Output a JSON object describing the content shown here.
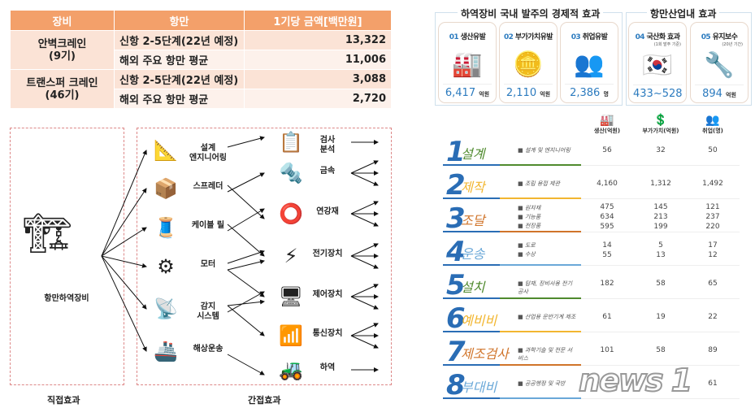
{
  "table": {
    "headers": [
      "장비",
      "항만",
      "1기당 금액[백만원]"
    ],
    "groups": [
      {
        "equipment": "안벽크레인",
        "count": "(9기)",
        "rows": [
          {
            "port": "신항 2-5단계(22년 예정)",
            "amount": "13,322"
          },
          {
            "port": "해외 주요 항만 평균",
            "amount": "11,006"
          }
        ]
      },
      {
        "equipment": "트랜스퍼 크레인",
        "count": "(46기)",
        "rows": [
          {
            "port": "신항 2-5단계(22년 예정)",
            "amount": "3,088"
          },
          {
            "port": "해외 주요 항만 평균",
            "amount": "2,720"
          }
        ]
      }
    ]
  },
  "diagram": {
    "direct_label": "항만하역장비",
    "direct_footer": "직접효과",
    "indirect_footer": "간접효과",
    "level1": [
      {
        "label": "설계\n엔지니어링",
        "icon": "blueprint-icon"
      },
      {
        "label": "스프레더",
        "icon": "container-icon"
      },
      {
        "label": "케이블 릴",
        "icon": "cable-reel-icon"
      },
      {
        "label": "모터",
        "icon": "motor-icon"
      },
      {
        "label": "감지\n시스템",
        "icon": "sensor-icon"
      },
      {
        "label": "해상운송",
        "icon": "ship-icon"
      }
    ],
    "level2": [
      {
        "label": "검사\n분석",
        "icon": "inspection-icon"
      },
      {
        "label": "금속",
        "icon": "steel-beam-icon"
      },
      {
        "label": "연강재",
        "icon": "steel-coil-icon"
      },
      {
        "label": "전기장치",
        "icon": "electric-icon"
      },
      {
        "label": "제어장치",
        "icon": "control-panel-icon"
      },
      {
        "label": "통신장치",
        "icon": "communication-icon"
      },
      {
        "label": "하역",
        "icon": "forklift-icon"
      }
    ]
  },
  "economic": {
    "title": "하역장비 국내 발주의 경제적 효과",
    "cards": [
      {
        "num": "01",
        "title": "생산유발",
        "value": "6,417",
        "unit": "억원",
        "icon": "worker-machine-icon"
      },
      {
        "num": "02",
        "title": "부가가치유발",
        "value": "2,110",
        "unit": "억원",
        "icon": "coins-icon"
      },
      {
        "num": "03",
        "title": "취업유발",
        "value": "2,386",
        "unit": "명",
        "icon": "people-icon"
      }
    ]
  },
  "port": {
    "title": "항만산업내 효과",
    "cards": [
      {
        "num": "04",
        "title": "국산화 효과",
        "sub": "(1회 발주 기준)",
        "value": "433~528",
        "unit": "억원",
        "icon": "korea-flag-icon"
      },
      {
        "num": "05",
        "title": "유지보수",
        "sub": "(20년 기간)",
        "value": "894",
        "unit": "억원",
        "icon": "wrench-icon"
      }
    ]
  },
  "breakdown": {
    "headers": [
      "생산(억원)",
      "부가가치(억원)",
      "취업(명)"
    ],
    "rows": [
      {
        "num": "1",
        "name": "설계",
        "color": "#4f8a2e",
        "items": [
          "설계 및 엔지니어링"
        ],
        "values": [
          [
            "56"
          ],
          [
            "32"
          ],
          [
            "50"
          ]
        ]
      },
      {
        "num": "2",
        "name": "제작",
        "color": "#f2b630",
        "items": [
          "조립 용접 제관"
        ],
        "values": [
          [
            "4,160"
          ],
          [
            "1,312"
          ],
          [
            "1,492"
          ]
        ]
      },
      {
        "num": "3",
        "name": "조달",
        "color": "#d0742a",
        "items": [
          "원자재",
          "기능품",
          "전장품"
        ],
        "values": [
          [
            "475",
            "634",
            "595"
          ],
          [
            "145",
            "213",
            "199"
          ],
          [
            "121",
            "237",
            "220"
          ]
        ]
      },
      {
        "num": "4",
        "name": "운송",
        "color": "#6aa8d8",
        "items": [
          "도로",
          "수상"
        ],
        "values": [
          [
            "14",
            "55"
          ],
          [
            "5",
            "13"
          ],
          [
            "17",
            "12"
          ]
        ]
      },
      {
        "num": "5",
        "name": "설치",
        "color": "#4f8a2e",
        "items": [
          "탑재, 장비사용 전기공사"
        ],
        "values": [
          [
            "182"
          ],
          [
            "58"
          ],
          [
            "65"
          ]
        ]
      },
      {
        "num": "6",
        "name": "예비비",
        "color": "#f2b630",
        "items": [
          "산업용 운반기계 제조"
        ],
        "values": [
          [
            "61"
          ],
          [
            "19"
          ],
          [
            "22"
          ]
        ]
      },
      {
        "num": "7",
        "name": "제조검사",
        "color": "#d0742a",
        "items": [
          "과학기술 및 전문 서비스"
        ],
        "values": [
          [
            "101"
          ],
          [
            "58"
          ],
          [
            "89"
          ]
        ]
      },
      {
        "num": "8",
        "name": "부대비",
        "color": "#6aa8d8",
        "items": [
          "공공행정 및 국방"
        ],
        "values": [
          [
            ""
          ],
          [
            ""
          ],
          [
            "61"
          ]
        ]
      }
    ]
  },
  "watermark": "news1"
}
